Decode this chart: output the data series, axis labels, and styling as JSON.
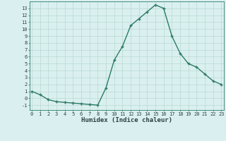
{
  "x": [
    0,
    1,
    2,
    3,
    4,
    5,
    6,
    7,
    8,
    9,
    10,
    11,
    12,
    13,
    14,
    15,
    16,
    17,
    18,
    19,
    20,
    21,
    22,
    23
  ],
  "y": [
    1.0,
    0.5,
    -0.2,
    -0.5,
    -0.6,
    -0.7,
    -0.8,
    -0.9,
    -1.0,
    1.5,
    5.5,
    7.5,
    10.5,
    11.5,
    12.5,
    13.5,
    13.0,
    9.0,
    6.5,
    5.0,
    4.5,
    3.5,
    2.5,
    2.0
  ],
  "xlabel": "Humidex (Indice chaleur)",
  "ylim": [
    -1.7,
    14.0
  ],
  "xlim": [
    -0.3,
    23.3
  ],
  "yticks": [
    -1,
    0,
    1,
    2,
    3,
    4,
    5,
    6,
    7,
    8,
    9,
    10,
    11,
    12,
    13
  ],
  "xticks": [
    0,
    1,
    2,
    3,
    4,
    5,
    6,
    7,
    8,
    9,
    10,
    11,
    12,
    13,
    14,
    15,
    16,
    17,
    18,
    19,
    20,
    21,
    22,
    23
  ],
  "line_color": "#2d7a65",
  "bg_color": "#daf0f0",
  "grid_color": "#b8d8d0",
  "tick_label_fontsize": 5.0,
  "xlabel_fontsize": 6.5,
  "marker": "+",
  "linewidth": 1.0,
  "markersize": 3.5,
  "markeredgewidth": 1.0
}
